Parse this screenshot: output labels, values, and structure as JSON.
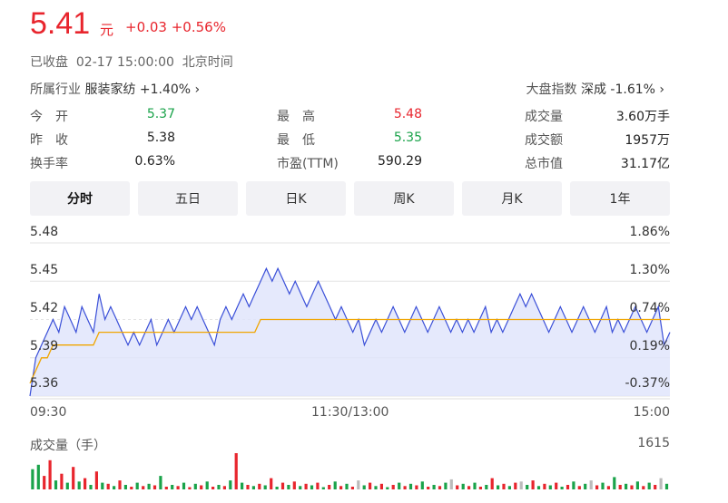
{
  "quote": {
    "price": "5.41",
    "unit": "元",
    "change": "+0.03 +0.56%",
    "status": "已收盘  02-17 15:00:00  北京时间",
    "industry_label": "所属行业",
    "industry_value": "服装家纺 +1.40% ›",
    "index_label": "大盘指数",
    "index_value": "深成 -1.61% ›"
  },
  "stats": [
    [
      {
        "label": "今　开",
        "value": "5.37",
        "color": "green"
      },
      {
        "label": "最　高",
        "value": "5.48",
        "color": "red"
      },
      {
        "label": "成交量",
        "value": "3.60万手",
        "color": ""
      }
    ],
    [
      {
        "label": "昨　收",
        "value": "5.38",
        "color": ""
      },
      {
        "label": "最　低",
        "value": "5.35",
        "color": "green"
      },
      {
        "label": "成交额",
        "value": "1957万",
        "color": ""
      }
    ],
    [
      {
        "label": "换手率",
        "value": "0.63%",
        "color": ""
      },
      {
        "label": "市盈(TTM)",
        "value": "590.29",
        "color": ""
      },
      {
        "label": "总市值",
        "value": "31.17亿",
        "color": ""
      }
    ]
  ],
  "tabs": [
    "分时",
    "五日",
    "日K",
    "周K",
    "月K",
    "1年"
  ],
  "colors": {
    "up": "#e8252d",
    "down": "#1aa34a",
    "line": "#3a4fd8",
    "avg": "#f0a500",
    "fill": "#dfe3fb"
  },
  "chart_data": {
    "type": "line",
    "y_left_ticks": [
      "5.48",
      "5.45",
      "5.42",
      "5.39",
      "5.36"
    ],
    "y_right_ticks": [
      "1.86%",
      "1.30%",
      "0.74%",
      "0.19%",
      "-0.37%"
    ],
    "ylim": [
      5.36,
      5.48
    ],
    "x_ticks": [
      "09:30",
      "11:30/13:00",
      "15:00"
    ],
    "price": [
      5.36,
      5.39,
      5.4,
      5.41,
      5.42,
      5.41,
      5.43,
      5.42,
      5.41,
      5.43,
      5.42,
      5.41,
      5.44,
      5.42,
      5.43,
      5.42,
      5.41,
      5.4,
      5.41,
      5.4,
      5.41,
      5.42,
      5.4,
      5.41,
      5.42,
      5.41,
      5.42,
      5.43,
      5.42,
      5.43,
      5.42,
      5.41,
      5.4,
      5.42,
      5.43,
      5.42,
      5.43,
      5.44,
      5.43,
      5.44,
      5.45,
      5.46,
      5.45,
      5.46,
      5.45,
      5.44,
      5.45,
      5.44,
      5.43,
      5.44,
      5.45,
      5.44,
      5.43,
      5.42,
      5.43,
      5.42,
      5.41,
      5.42,
      5.4,
      5.41,
      5.42,
      5.41,
      5.42,
      5.43,
      5.42,
      5.41,
      5.42,
      5.43,
      5.42,
      5.41,
      5.42,
      5.43,
      5.42,
      5.41,
      5.42,
      5.41,
      5.42,
      5.41,
      5.42,
      5.43,
      5.41,
      5.42,
      5.41,
      5.42,
      5.43,
      5.44,
      5.43,
      5.44,
      5.43,
      5.42,
      5.41,
      5.42,
      5.43,
      5.42,
      5.41,
      5.42,
      5.43,
      5.42,
      5.41,
      5.42,
      5.43,
      5.41,
      5.42,
      5.41,
      5.42,
      5.43,
      5.42,
      5.41,
      5.42,
      5.43,
      5.4,
      5.41
    ],
    "average": [
      5.37,
      5.38,
      5.39,
      5.39,
      5.4,
      5.4,
      5.4,
      5.4,
      5.4,
      5.4,
      5.4,
      5.4,
      5.41,
      5.41,
      5.41,
      5.41,
      5.41,
      5.41,
      5.41,
      5.41,
      5.41,
      5.41,
      5.41,
      5.41,
      5.41,
      5.41,
      5.41,
      5.41,
      5.41,
      5.41,
      5.41,
      5.41,
      5.41,
      5.41,
      5.41,
      5.41,
      5.41,
      5.41,
      5.41,
      5.41,
      5.42,
      5.42,
      5.42,
      5.42,
      5.42,
      5.42,
      5.42,
      5.42,
      5.42,
      5.42,
      5.42,
      5.42,
      5.42,
      5.42,
      5.42,
      5.42,
      5.42,
      5.42,
      5.42,
      5.42,
      5.42,
      5.42,
      5.42,
      5.42,
      5.42,
      5.42,
      5.42,
      5.42,
      5.42,
      5.42,
      5.42,
      5.42,
      5.42,
      5.42,
      5.42,
      5.42,
      5.42,
      5.42,
      5.42,
      5.42,
      5.42,
      5.42,
      5.42,
      5.42,
      5.42,
      5.42,
      5.42,
      5.42,
      5.42,
      5.42,
      5.42,
      5.42,
      5.42,
      5.42,
      5.42,
      5.42,
      5.42,
      5.42,
      5.42,
      5.42,
      5.42,
      5.42,
      5.42,
      5.42,
      5.42,
      5.42,
      5.42,
      5.42,
      5.42,
      5.42,
      5.42,
      5.42
    ],
    "volume_title": "成交量（手）",
    "volume_max": "1615",
    "volume": [
      {
        "v": 900,
        "c": "g"
      },
      {
        "v": 1100,
        "c": "g"
      },
      {
        "v": 600,
        "c": "r"
      },
      {
        "v": 1300,
        "c": "r"
      },
      {
        "v": 400,
        "c": "g"
      },
      {
        "v": 700,
        "c": "r"
      },
      {
        "v": 300,
        "c": "g"
      },
      {
        "v": 1000,
        "c": "r"
      },
      {
        "v": 350,
        "c": "g"
      },
      {
        "v": 500,
        "c": "r"
      },
      {
        "v": 200,
        "c": "g"
      },
      {
        "v": 800,
        "c": "r"
      },
      {
        "v": 300,
        "c": "g"
      },
      {
        "v": 250,
        "c": "r"
      },
      {
        "v": 150,
        "c": "g"
      },
      {
        "v": 400,
        "c": "r"
      },
      {
        "v": 200,
        "c": "g"
      },
      {
        "v": 120,
        "c": "r"
      },
      {
        "v": 300,
        "c": "g"
      },
      {
        "v": 150,
        "c": "r"
      },
      {
        "v": 250,
        "c": "g"
      },
      {
        "v": 180,
        "c": "r"
      },
      {
        "v": 600,
        "c": "g"
      },
      {
        "v": 120,
        "c": "r"
      },
      {
        "v": 200,
        "c": "g"
      },
      {
        "v": 150,
        "c": "r"
      },
      {
        "v": 300,
        "c": "g"
      },
      {
        "v": 100,
        "c": "r"
      },
      {
        "v": 250,
        "c": "g"
      },
      {
        "v": 180,
        "c": "r"
      },
      {
        "v": 350,
        "c": "g"
      },
      {
        "v": 120,
        "c": "r"
      },
      {
        "v": 200,
        "c": "g"
      },
      {
        "v": 150,
        "c": "r"
      },
      {
        "v": 400,
        "c": "g"
      },
      {
        "v": 1615,
        "c": "r"
      },
      {
        "v": 300,
        "c": "g"
      },
      {
        "v": 200,
        "c": "r"
      },
      {
        "v": 150,
        "c": "g"
      },
      {
        "v": 250,
        "c": "r"
      },
      {
        "v": 180,
        "c": "g"
      },
      {
        "v": 500,
        "c": "r"
      },
      {
        "v": 120,
        "c": "g"
      },
      {
        "v": 300,
        "c": "r"
      },
      {
        "v": 200,
        "c": "g"
      },
      {
        "v": 350,
        "c": "r"
      },
      {
        "v": 150,
        "c": "g"
      },
      {
        "v": 250,
        "c": "r"
      },
      {
        "v": 180,
        "c": "g"
      },
      {
        "v": 300,
        "c": "r"
      },
      {
        "v": 100,
        "c": "g"
      },
      {
        "v": 200,
        "c": "r"
      },
      {
        "v": 350,
        "c": "g"
      },
      {
        "v": 150,
        "c": "r"
      },
      {
        "v": 250,
        "c": "g"
      },
      {
        "v": 120,
        "c": "r"
      },
      {
        "v": 400,
        "c": "x"
      },
      {
        "v": 180,
        "c": "g"
      },
      {
        "v": 300,
        "c": "r"
      },
      {
        "v": 150,
        "c": "g"
      },
      {
        "v": 250,
        "c": "r"
      },
      {
        "v": 100,
        "c": "g"
      },
      {
        "v": 200,
        "c": "r"
      },
      {
        "v": 300,
        "c": "g"
      },
      {
        "v": 150,
        "c": "r"
      },
      {
        "v": 250,
        "c": "g"
      },
      {
        "v": 180,
        "c": "r"
      },
      {
        "v": 350,
        "c": "g"
      },
      {
        "v": 120,
        "c": "r"
      },
      {
        "v": 200,
        "c": "g"
      },
      {
        "v": 150,
        "c": "r"
      },
      {
        "v": 300,
        "c": "g"
      },
      {
        "v": 450,
        "c": "x"
      },
      {
        "v": 180,
        "c": "r"
      },
      {
        "v": 250,
        "c": "g"
      },
      {
        "v": 150,
        "c": "r"
      },
      {
        "v": 300,
        "c": "g"
      },
      {
        "v": 120,
        "c": "r"
      },
      {
        "v": 200,
        "c": "g"
      },
      {
        "v": 500,
        "c": "r"
      },
      {
        "v": 180,
        "c": "g"
      },
      {
        "v": 250,
        "c": "r"
      },
      {
        "v": 150,
        "c": "g"
      },
      {
        "v": 300,
        "c": "r"
      },
      {
        "v": 350,
        "c": "x"
      },
      {
        "v": 200,
        "c": "g"
      },
      {
        "v": 400,
        "c": "r"
      },
      {
        "v": 150,
        "c": "g"
      },
      {
        "v": 250,
        "c": "r"
      },
      {
        "v": 180,
        "c": "g"
      },
      {
        "v": 300,
        "c": "r"
      },
      {
        "v": 120,
        "c": "g"
      },
      {
        "v": 200,
        "c": "r"
      },
      {
        "v": 350,
        "c": "g"
      },
      {
        "v": 150,
        "c": "r"
      },
      {
        "v": 250,
        "c": "g"
      },
      {
        "v": 400,
        "c": "x"
      },
      {
        "v": 180,
        "c": "r"
      },
      {
        "v": 300,
        "c": "g"
      },
      {
        "v": 150,
        "c": "r"
      },
      {
        "v": 550,
        "c": "g"
      },
      {
        "v": 200,
        "c": "r"
      },
      {
        "v": 250,
        "c": "g"
      },
      {
        "v": 180,
        "c": "r"
      },
      {
        "v": 350,
        "c": "g"
      },
      {
        "v": 150,
        "c": "r"
      },
      {
        "v": 300,
        "c": "g"
      },
      {
        "v": 200,
        "c": "r"
      },
      {
        "v": 500,
        "c": "x"
      },
      {
        "v": 250,
        "c": "g"
      }
    ]
  }
}
